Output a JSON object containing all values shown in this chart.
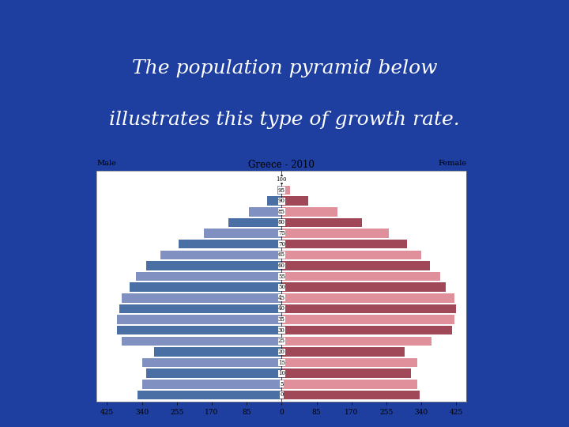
{
  "title": "Greece - 2010",
  "male_label": "Male",
  "female_label": "Female",
  "background_color": "#1e3fa0",
  "text_color": "white",
  "text_line1": "The population pyramid below",
  "text_line2": "illustrates this type of growth rate.",
  "text_fontsize": 18,
  "age_groups": [
    0,
    5,
    10,
    15,
    20,
    25,
    30,
    35,
    40,
    45,
    50,
    55,
    60,
    65,
    70,
    75,
    80,
    85,
    90,
    95,
    100
  ],
  "male_values": [
    350,
    340,
    330,
    340,
    310,
    390,
    400,
    400,
    395,
    390,
    370,
    355,
    330,
    295,
    250,
    190,
    130,
    80,
    35,
    10,
    2
  ],
  "female_values": [
    335,
    330,
    315,
    330,
    300,
    365,
    415,
    420,
    425,
    420,
    400,
    385,
    360,
    340,
    305,
    260,
    195,
    135,
    65,
    20,
    3
  ],
  "male_color_dark": "#4a6fa5",
  "male_color_light": "#8090c0",
  "female_color_dark": "#a04858",
  "female_color_light": "#e0909a",
  "xlim": 450,
  "xticks": [
    -425,
    -340,
    -255,
    -170,
    -85,
    0,
    85,
    170,
    255,
    340,
    425
  ],
  "xtick_labels": [
    "425",
    "340",
    "255",
    "170",
    "85",
    "0",
    "85",
    "170",
    "255",
    "340",
    "425"
  ]
}
